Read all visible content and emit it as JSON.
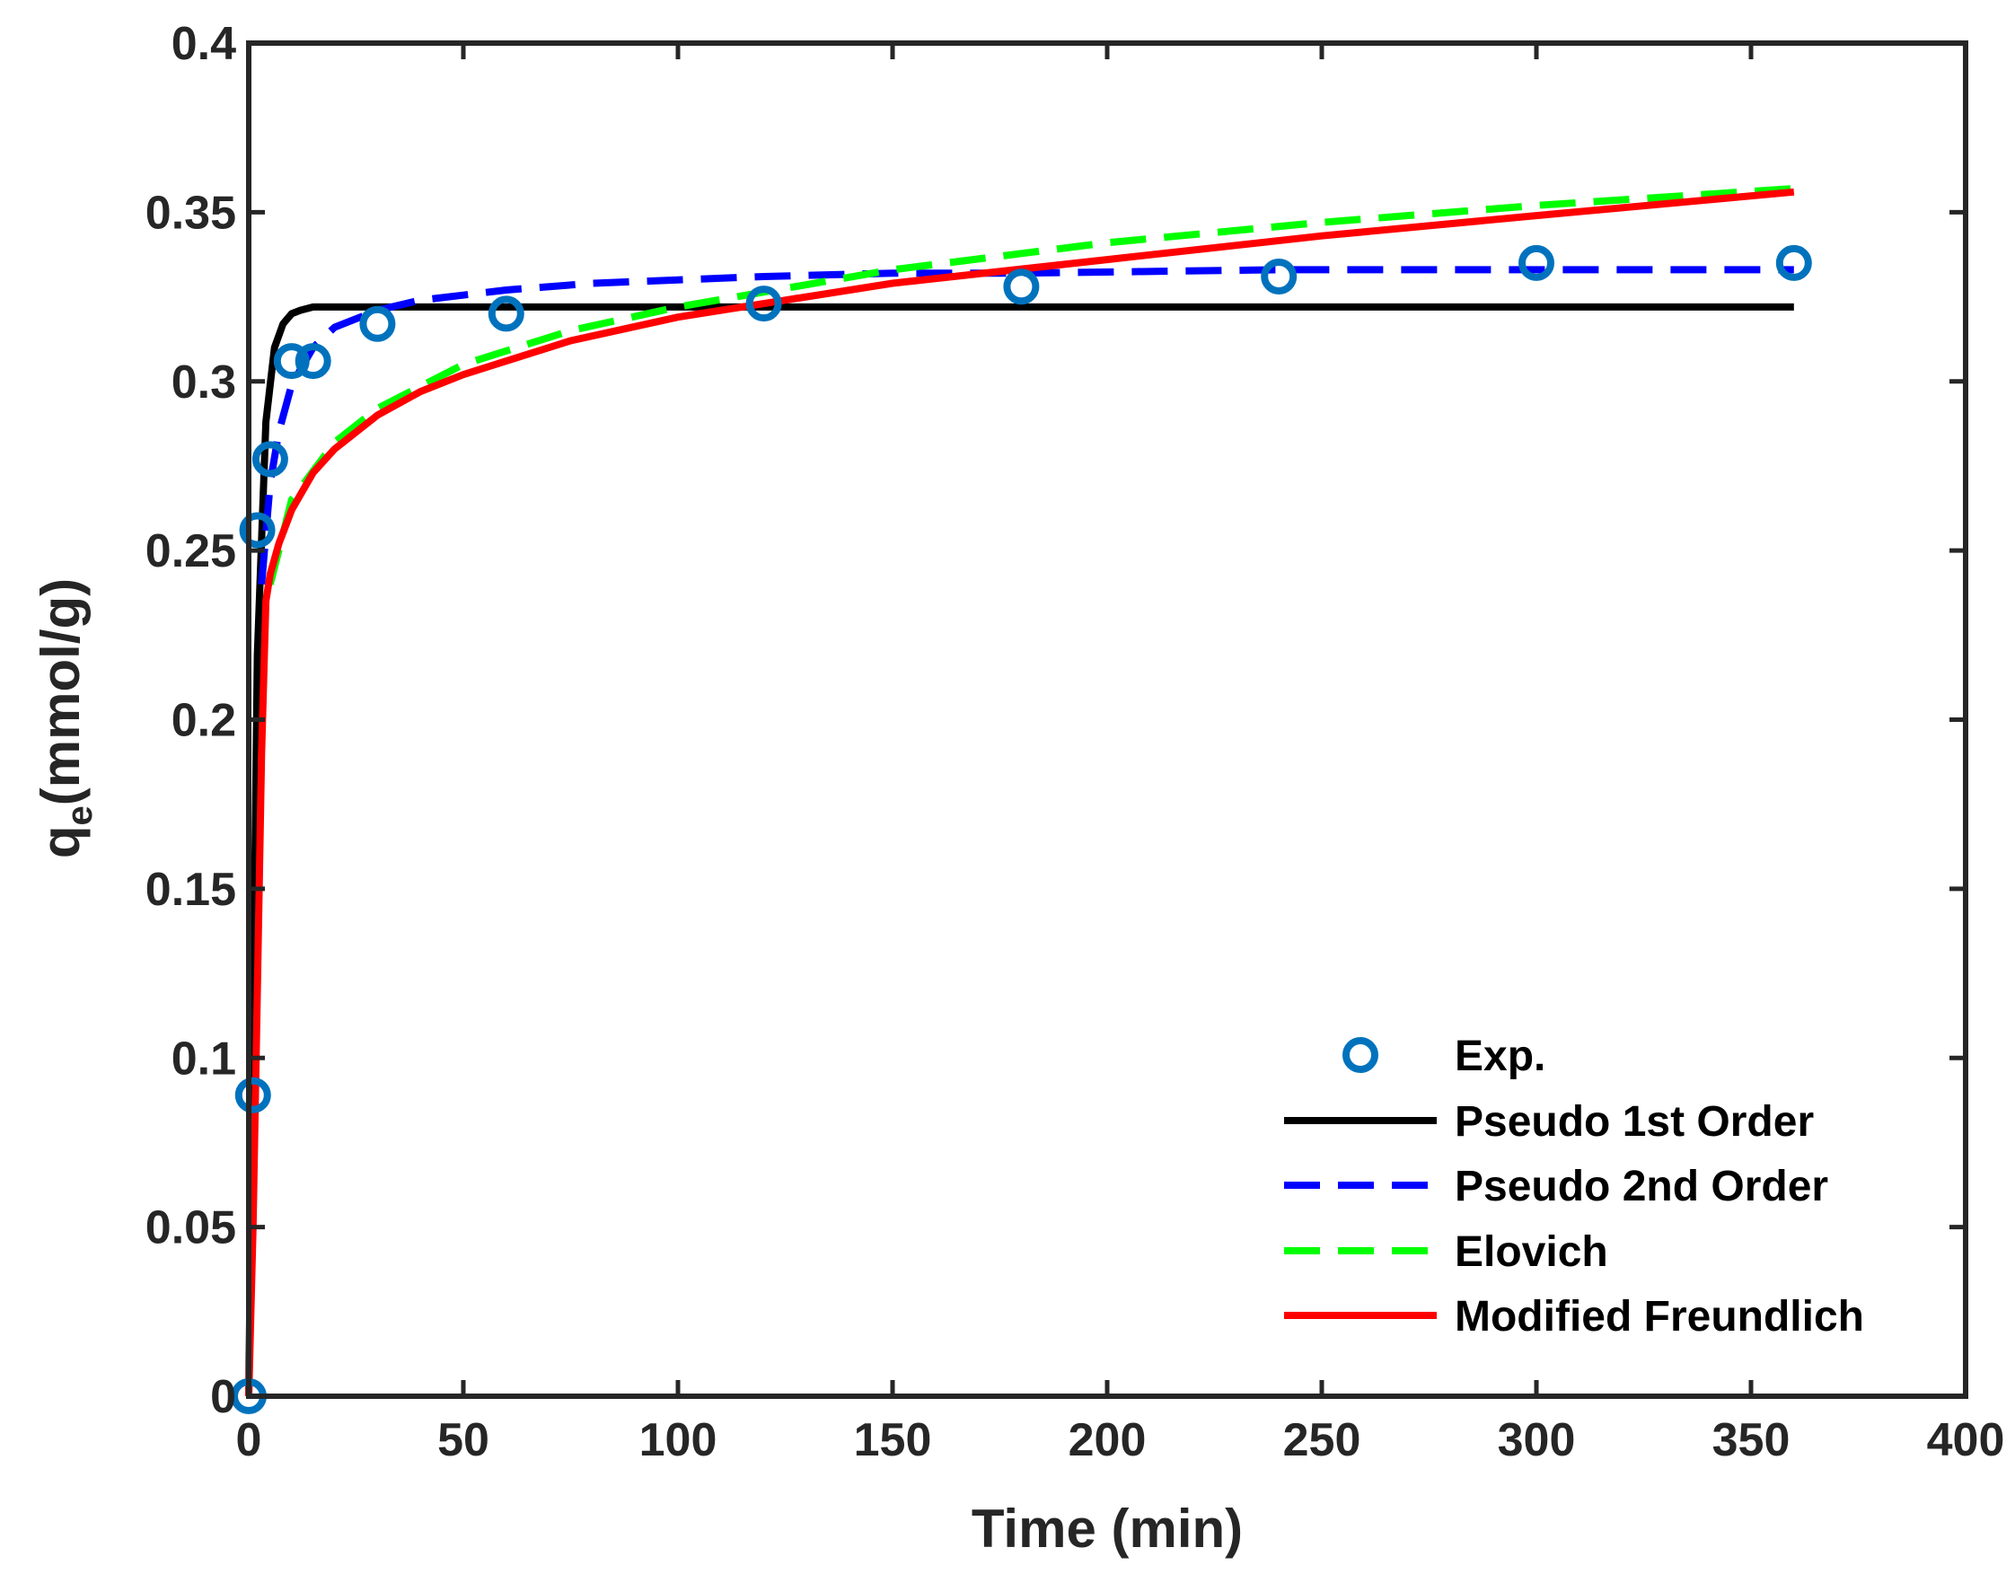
{
  "chart_data": {
    "type": "line",
    "title": "",
    "xlabel": "Time (min)",
    "ylabel": {
      "main": "q",
      "subscript": "e",
      "units": "(mmol/g)"
    },
    "xlim": [
      0,
      400
    ],
    "ylim": [
      0,
      0.4
    ],
    "xticks": [
      0,
      50,
      100,
      150,
      200,
      250,
      300,
      350,
      400
    ],
    "yticks": [
      0,
      0.05,
      0.1,
      0.15,
      0.2,
      0.25,
      0.3,
      0.35,
      0.4
    ],
    "xtick_labels": [
      "0",
      "50",
      "100",
      "150",
      "200",
      "250",
      "300",
      "350",
      "400"
    ],
    "ytick_labels": [
      "0",
      "0.05",
      "0.1",
      "0.15",
      "0.2",
      "0.25",
      "0.3",
      "0.35",
      "0.4"
    ],
    "grid": false,
    "legend_position": "bottom-right",
    "series": [
      {
        "name": "Exp.",
        "style": "markers",
        "color": "#0072BD",
        "x": [
          0,
          1,
          2,
          5,
          10,
          15,
          30,
          60,
          120,
          180,
          240,
          300,
          360
        ],
        "y": [
          0.0,
          0.089,
          0.256,
          0.277,
          0.306,
          0.306,
          0.317,
          0.32,
          0.323,
          0.328,
          0.331,
          0.335,
          0.335
        ]
      },
      {
        "name": "Pseudo 1st Order",
        "style": "solid",
        "color": "#000000",
        "x": [
          0,
          2,
          4,
          6,
          8,
          10,
          12,
          15,
          20,
          30,
          50,
          100,
          200,
          360
        ],
        "y": [
          0.0,
          0.219,
          0.288,
          0.31,
          0.317,
          0.32,
          0.321,
          0.322,
          0.322,
          0.322,
          0.322,
          0.322,
          0.322,
          0.322
        ]
      },
      {
        "name": "Pseudo 2nd Order",
        "style": "dashed",
        "color": "#0000FF",
        "x": [
          3,
          5,
          7,
          10,
          15,
          20,
          30,
          40,
          60,
          80,
          100,
          120,
          150,
          180,
          240,
          300,
          360
        ],
        "y": [
          0.24,
          0.27,
          0.285,
          0.299,
          0.31,
          0.316,
          0.321,
          0.324,
          0.327,
          0.329,
          0.33,
          0.331,
          0.332,
          0.332,
          0.333,
          0.333,
          0.333
        ]
      },
      {
        "name": "Elovich",
        "style": "dashed",
        "color": "#00FF00",
        "x": [
          5,
          10,
          20,
          30,
          50,
          75,
          100,
          150,
          200,
          250,
          300,
          360
        ],
        "y": [
          0.24,
          0.265,
          0.282,
          0.292,
          0.305,
          0.315,
          0.322,
          0.333,
          0.341,
          0.347,
          0.352,
          0.357
        ]
      },
      {
        "name": "Modified Freundlich",
        "style": "solid",
        "color": "#FF0000",
        "x": [
          0,
          1,
          2,
          3,
          4,
          5,
          7,
          10,
          15,
          20,
          30,
          40,
          50,
          60,
          75,
          100,
          125,
          150,
          200,
          250,
          300,
          360
        ],
        "y": [
          0.0,
          0.05,
          0.12,
          0.19,
          0.235,
          0.243,
          0.252,
          0.262,
          0.273,
          0.28,
          0.29,
          0.297,
          0.302,
          0.306,
          0.312,
          0.319,
          0.324,
          0.329,
          0.336,
          0.343,
          0.349,
          0.356
        ]
      }
    ]
  }
}
